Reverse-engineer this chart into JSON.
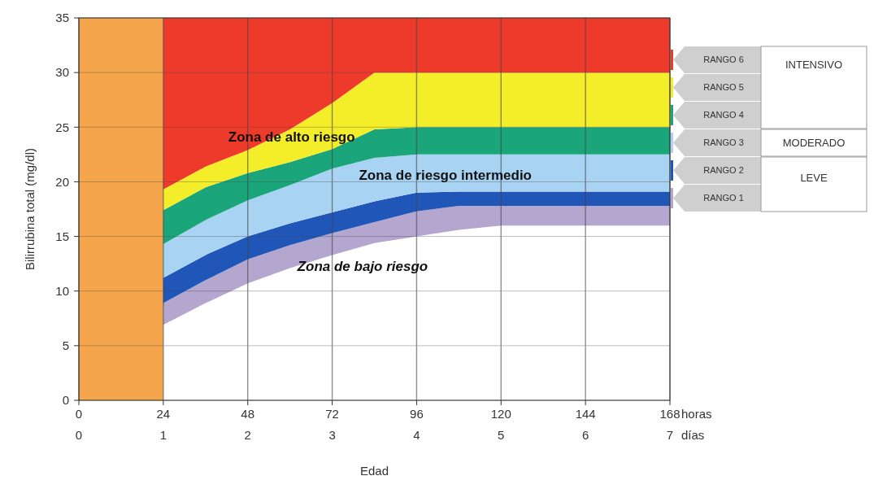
{
  "chart_data": {
    "type": "area",
    "stacked": true,
    "xlabel": "Edad",
    "ylabel": "Bilirrubina total (mg/dl)",
    "x": [
      24,
      36,
      48,
      60,
      72,
      84,
      96,
      108,
      120,
      144,
      168
    ],
    "series": [
      {
        "color": "#ffffff",
        "values": [
          6.9,
          8.9,
          10.7,
          12.1,
          13.3,
          14.4,
          15.0,
          15.6,
          16.0,
          16.0,
          16.0
        ]
      },
      {
        "name": "RANGO 1",
        "color": "#b3a6cf",
        "values": [
          2.0,
          2.1,
          2.2,
          2.1,
          2.0,
          1.9,
          2.3,
          2.2,
          1.8,
          1.8,
          1.8
        ]
      },
      {
        "name": "RANGO 2",
        "color": "#1f56b8",
        "values": [
          2.3,
          2.3,
          2.1,
          2.0,
          1.9,
          1.9,
          1.7,
          1.3,
          1.3,
          1.3,
          1.3
        ]
      },
      {
        "name": "RANGO 3",
        "color": "#a9d3f2",
        "values": [
          3.1,
          3.2,
          3.3,
          3.5,
          4.0,
          4.0,
          3.5,
          3.4,
          3.4,
          3.4,
          3.4
        ]
      },
      {
        "name": "RANGO 4",
        "color": "#1aa57a",
        "values": [
          3.1,
          3.0,
          2.5,
          2.1,
          1.8,
          2.6,
          2.5,
          2.5,
          2.5,
          2.5,
          2.5
        ]
      },
      {
        "name": "RANGO 5",
        "color": "#f4ee2a",
        "values": [
          1.9,
          1.9,
          2.1,
          3.0,
          4.2,
          5.2,
          5,
          5,
          5,
          5,
          5
        ]
      },
      {
        "name": "RANGO 6",
        "color": "#ee3a2a",
        "values": [
          15.7,
          13.6,
          12.1,
          10.2,
          7.8,
          5,
          5,
          5,
          5,
          5,
          5
        ]
      }
    ],
    "xlim": [
      0,
      168
    ],
    "xticks": [
      0,
      24,
      48,
      72,
      96,
      120,
      144,
      168
    ],
    "x2lim": [
      0,
      7
    ],
    "x2ticks": [
      0,
      1,
      2,
      3,
      4,
      5,
      6,
      7
    ],
    "ylim": [
      0,
      35
    ],
    "yticks": [
      0,
      5,
      10,
      15,
      20,
      25,
      30,
      35
    ],
    "grid": true,
    "legend": "right",
    "bands": [
      {
        "axis": "x",
        "from": 0,
        "to": 24,
        "color": "#f5a54c"
      }
    ],
    "annotations": [
      "Zona de alto riesgo",
      "Zona de riesgo intermedio",
      "Zona de bajo riesgo",
      "horas",
      "días",
      "INTENSIVO",
      "MODERADO",
      "LEVE"
    ]
  }
}
